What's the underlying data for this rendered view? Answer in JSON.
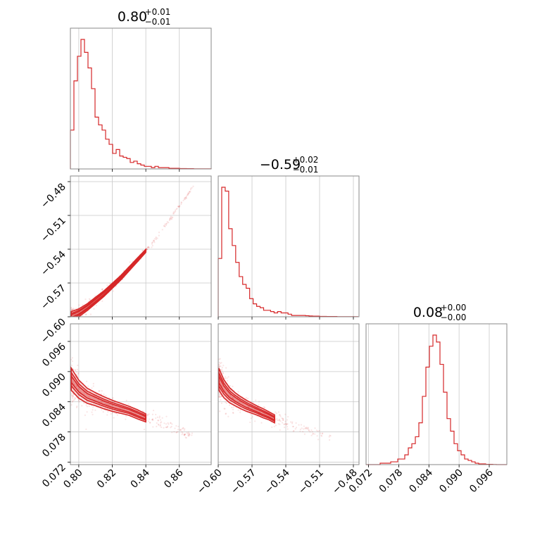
{
  "chart_data": {
    "type": "corner",
    "color": "#d62728",
    "parameters": [
      {
        "title": {
          "median": "0.80",
          "plus": "+0.01",
          "minus": "−0.01"
        },
        "range": [
          0.795,
          0.879
        ],
        "ticks": [
          0.8,
          0.82,
          0.84,
          0.86
        ],
        "tick_labels": [
          "0.80",
          "0.82",
          "0.84",
          "0.86"
        ]
      },
      {
        "title": {
          "median": "−0.59",
          "plus": "+0.02",
          "minus": "−0.01"
        },
        "range": [
          -0.6,
          -0.475
        ],
        "ticks": [
          -0.6,
          -0.57,
          -0.54,
          -0.51,
          -0.48
        ],
        "tick_labels": [
          "−0.60",
          "−0.57",
          "−0.54",
          "−0.51",
          "−0.48"
        ]
      },
      {
        "title": {
          "median": "0.08",
          "plus": "+0.00",
          "minus": "−0.00"
        },
        "range": [
          0.0715,
          0.0995
        ],
        "ticks": [
          0.072,
          0.078,
          0.084,
          0.09,
          0.096
        ],
        "tick_labels": [
          "0.072",
          "0.078",
          "0.084",
          "0.090",
          "0.096"
        ]
      }
    ],
    "histograms": [
      {
        "param": 0,
        "edges_start": 0.795,
        "bin_width": 0.0021,
        "counts": [
          30,
          68,
          87,
          100,
          90,
          78,
          62,
          40,
          34,
          30,
          23,
          19,
          12,
          15,
          10,
          9,
          8,
          5,
          6,
          4,
          3,
          2,
          2,
          1,
          2,
          1,
          1,
          1,
          0.5,
          0.5,
          0.5,
          0.3,
          0.3,
          0.2,
          0.2,
          0.1,
          0.1,
          0.1,
          0.1,
          0.1
        ]
      },
      {
        "param": 1,
        "edges_start": -0.6,
        "bin_width": 0.0031,
        "counts": [
          45,
          100,
          97,
          68,
          55,
          42,
          31,
          25,
          22,
          14,
          10,
          8,
          7,
          5,
          5,
          4,
          3,
          4,
          3,
          3,
          2,
          1,
          1,
          1,
          1,
          0.8,
          0.6,
          0.5,
          0.5,
          0.3,
          0.3,
          0.2,
          0.2,
          0.2,
          0.1,
          0.1,
          0.1,
          0.1,
          0.1,
          0.1
        ]
      },
      {
        "param": 2,
        "edges_start": 0.0715,
        "bin_width": 0.0007,
        "counts": [
          0,
          0,
          0,
          0,
          1,
          1,
          1,
          2,
          2,
          4,
          4,
          7,
          12,
          15,
          20,
          30,
          49,
          70,
          85,
          93,
          88,
          72,
          52,
          33,
          24,
          15,
          10,
          7,
          4,
          3,
          2,
          1,
          0.5,
          0.5,
          0.2,
          0.2,
          0.1,
          0,
          0,
          0
        ]
      }
    ],
    "ridges": [
      {
        "x": 0,
        "y": 1,
        "points": [
          [
            0.7955,
            -0.5995
          ],
          [
            0.8,
            -0.5965
          ],
          [
            0.805,
            -0.5915
          ],
          [
            0.81,
            -0.5855
          ],
          [
            0.815,
            -0.5795
          ],
          [
            0.82,
            -0.5725
          ],
          [
            0.825,
            -0.5655
          ],
          [
            0.83,
            -0.5575
          ],
          [
            0.835,
            -0.5495
          ],
          [
            0.84,
            -0.5415
          ],
          [
            0.845,
            -0.5325
          ],
          [
            0.85,
            -0.5225
          ],
          [
            0.855,
            -0.5125
          ],
          [
            0.86,
            -0.5015
          ],
          [
            0.865,
            -0.4915
          ],
          [
            0.869,
            -0.4825
          ]
        ],
        "width_y": [
          0.004,
          0.0035,
          0.003,
          0.0028,
          0.0025,
          0.0022,
          0.002,
          0.0018,
          0.0016,
          0.0014,
          0.0012,
          0.001,
          0.001,
          0.0009,
          0.0008,
          0.0007
        ]
      },
      {
        "x": 0,
        "y": 2,
        "points": [
          [
            0.7955,
            0.0885
          ],
          [
            0.8,
            0.0865
          ],
          [
            0.805,
            0.0852
          ],
          [
            0.81,
            0.0845
          ],
          [
            0.815,
            0.0838
          ],
          [
            0.82,
            0.0832
          ],
          [
            0.825,
            0.0827
          ],
          [
            0.83,
            0.0822
          ],
          [
            0.835,
            0.0815
          ],
          [
            0.84,
            0.0808
          ],
          [
            0.845,
            0.0803
          ],
          [
            0.85,
            0.0797
          ],
          [
            0.855,
            0.079
          ],
          [
            0.86,
            0.0783
          ],
          [
            0.865,
            0.0775
          ],
          [
            0.869,
            0.0768
          ]
        ],
        "width_y": [
          0.0022,
          0.0018,
          0.0015,
          0.0013,
          0.0012,
          0.0011,
          0.001,
          0.0009,
          0.0009,
          0.0008,
          0.0008,
          0.0007,
          0.0007,
          0.0006,
          0.0006,
          0.0005
        ]
      },
      {
        "x": 1,
        "y": 2,
        "points": [
          [
            -0.5995,
            0.0885
          ],
          [
            -0.595,
            0.0866
          ],
          [
            -0.59,
            0.0853
          ],
          [
            -0.585,
            0.0845
          ],
          [
            -0.58,
            0.0838
          ],
          [
            -0.575,
            0.0832
          ],
          [
            -0.57,
            0.0827
          ],
          [
            -0.565,
            0.0822
          ],
          [
            -0.56,
            0.0817
          ],
          [
            -0.555,
            0.0812
          ],
          [
            -0.55,
            0.0806
          ],
          [
            -0.545,
            0.0802
          ],
          [
            -0.54,
            0.0797
          ],
          [
            -0.53,
            0.079
          ],
          [
            -0.52,
            0.0783
          ],
          [
            -0.51,
            0.0776
          ],
          [
            -0.5,
            0.077
          ]
        ],
        "width_y": [
          0.0022,
          0.0018,
          0.0015,
          0.0013,
          0.0012,
          0.0011,
          0.001,
          0.0009,
          0.0009,
          0.0008,
          0.0008,
          0.0007,
          0.0007,
          0.0006,
          0.0006,
          0.0005,
          0.0005
        ]
      }
    ],
    "grid": true,
    "legend": "none"
  }
}
